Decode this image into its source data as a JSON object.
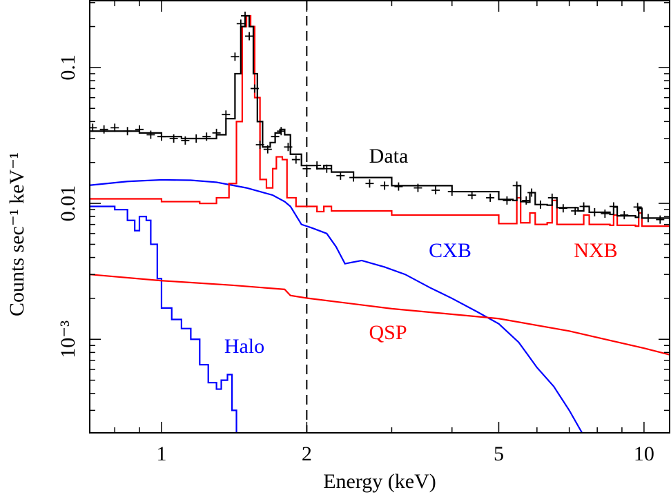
{
  "chart_data": {
    "type": "line",
    "xlabel": "Energy (keV)",
    "ylabel": "Counts sec⁻¹ keV⁻¹",
    "xscale": "log",
    "yscale": "log",
    "xlim": [
      0.71,
      11.3
    ],
    "ylim": [
      0.000205,
      0.31
    ],
    "xticks": [
      1,
      2,
      5,
      10
    ],
    "xminorticks": [
      0.8,
      0.9,
      3,
      4,
      6,
      7,
      8,
      9
    ],
    "yticks": [
      0.1,
      0.01,
      {
        "value": 0.001,
        "label": "10⁻³"
      }
    ],
    "yminorticks": [
      0.0003,
      0.0004,
      0.0005,
      0.0006,
      0.0007,
      0.0008,
      0.0009,
      0.002,
      0.003,
      0.004,
      0.005,
      0.006,
      0.007,
      0.008,
      0.009,
      0.02,
      0.03,
      0.04,
      0.05,
      0.06,
      0.07,
      0.08,
      0.09,
      0.2,
      0.3
    ],
    "vline": 2,
    "series": [
      {
        "name": "Data",
        "color": "#000000",
        "marker": "+",
        "x": [
          0.72,
          0.76,
          0.8,
          0.85,
          0.9,
          0.95,
          1.0,
          1.06,
          1.12,
          1.18,
          1.24,
          1.3,
          1.36,
          1.42,
          1.46,
          1.49,
          1.52,
          1.56,
          1.6,
          1.66,
          1.72,
          1.77,
          1.83,
          1.9,
          2.0,
          2.1,
          2.2,
          2.35,
          2.5,
          2.7,
          2.9,
          3.1,
          3.4,
          3.7,
          4.0,
          4.4,
          4.8,
          5.2,
          5.45,
          5.7,
          5.85,
          6.1,
          6.45,
          6.8,
          7.2,
          7.5,
          7.9,
          8.3,
          8.65,
          9.1,
          9.7,
          10.2,
          10.8
        ],
        "values": [
          0.036,
          0.035,
          0.036,
          0.034,
          0.035,
          0.032,
          0.031,
          0.03,
          0.029,
          0.03,
          0.031,
          0.033,
          0.045,
          0.12,
          0.21,
          0.24,
          0.17,
          0.07,
          0.027,
          0.025,
          0.031,
          0.034,
          0.026,
          0.021,
          0.018,
          0.019,
          0.018,
          0.016,
          0.0155,
          0.014,
          0.0135,
          0.0133,
          0.013,
          0.0125,
          0.0122,
          0.0115,
          0.011,
          0.0105,
          0.0135,
          0.0105,
          0.012,
          0.0098,
          0.011,
          0.0092,
          0.0088,
          0.0095,
          0.0086,
          0.0084,
          0.0095,
          0.0082,
          0.0094,
          0.0078,
          0.0076
        ]
      },
      {
        "color": "#000000",
        "drawstyle": "steps",
        "x": [
          0.71,
          0.8,
          0.9,
          1.0,
          1.1,
          1.2,
          1.3,
          1.36,
          1.42,
          1.46,
          1.49,
          1.52,
          1.55,
          1.58,
          1.62,
          1.68,
          1.72,
          1.76,
          1.8,
          1.85,
          1.95,
          2.1,
          2.17,
          2.25,
          2.5,
          3,
          4,
          5,
          5.35,
          5.45,
          5.55,
          5.7,
          5.8,
          5.95,
          6.3,
          6.45,
          6.6,
          7.3,
          7.5,
          7.7,
          8.5,
          8.65,
          8.8,
          9.6,
          9.75,
          9.9,
          11.3
        ],
        "values": [
          0.034,
          0.034,
          0.033,
          0.031,
          0.03,
          0.03,
          0.032,
          0.042,
          0.09,
          0.2,
          0.24,
          0.2,
          0.09,
          0.04,
          0.026,
          0.028,
          0.033,
          0.035,
          0.032,
          0.023,
          0.019,
          0.018,
          0.019,
          0.017,
          0.0155,
          0.0135,
          0.0122,
          0.0107,
          0.0105,
          0.0135,
          0.0103,
          0.0102,
          0.012,
          0.0098,
          0.0097,
          0.011,
          0.0093,
          0.0088,
          0.0095,
          0.0086,
          0.0083,
          0.0094,
          0.0081,
          0.0079,
          0.0092,
          0.0078,
          0.0074
        ]
      },
      {
        "name": "NXB",
        "color": "#ff0000",
        "drawstyle": "steps",
        "x": [
          0.71,
          1.0,
          1.2,
          1.3,
          1.38,
          1.43,
          1.47,
          1.5,
          1.53,
          1.56,
          1.6,
          1.65,
          1.7,
          1.73,
          1.78,
          1.82,
          1.9,
          2.1,
          2.17,
          2.25,
          3,
          5,
          5.35,
          5.45,
          5.55,
          5.8,
          5.95,
          6.3,
          6.45,
          6.6,
          7.3,
          7.5,
          7.7,
          8.5,
          8.65,
          8.8,
          9.6,
          9.75,
          9.9,
          11.3
        ],
        "values": [
          0.0108,
          0.0103,
          0.01,
          0.011,
          0.014,
          0.04,
          0.2,
          0.24,
          0.2,
          0.06,
          0.015,
          0.013,
          0.018,
          0.022,
          0.021,
          0.011,
          0.0095,
          0.0087,
          0.0095,
          0.0088,
          0.0082,
          0.0071,
          0.0071,
          0.011,
          0.0072,
          0.0085,
          0.007,
          0.0072,
          0.0105,
          0.007,
          0.007,
          0.0082,
          0.007,
          0.0069,
          0.0082,
          0.0069,
          0.0068,
          0.0085,
          0.0068,
          0.0067
        ]
      },
      {
        "name": "QSP",
        "color": "#ff0000",
        "x": [
          0.71,
          1.0,
          1.4,
          1.8,
          1.85,
          2,
          3,
          5,
          7,
          10,
          11.3
        ],
        "values": [
          0.003,
          0.0027,
          0.0025,
          0.00233,
          0.0021,
          0.00201,
          0.00168,
          0.00142,
          0.00115,
          0.00086,
          0.00077
        ]
      },
      {
        "name": "CXB",
        "color": "#0000ff",
        "x": [
          0.71,
          0.85,
          1.0,
          1.15,
          1.3,
          1.5,
          1.7,
          1.8,
          1.85,
          1.95,
          2.05,
          2.2,
          2.3,
          2.4,
          2.6,
          2.9,
          3.2,
          3.6,
          4.0,
          4.5,
          5,
          5.5,
          6,
          6.5,
          7,
          7.5
        ],
        "values": [
          0.0136,
          0.0145,
          0.0149,
          0.0148,
          0.0143,
          0.013,
          0.0115,
          0.0103,
          0.0095,
          0.007,
          0.0066,
          0.006,
          0.0048,
          0.0036,
          0.0038,
          0.0034,
          0.003,
          0.0024,
          0.002,
          0.0016,
          0.0013,
          0.00095,
          0.00062,
          0.00045,
          0.0003,
          0.000195
        ]
      },
      {
        "name": "Halo",
        "color": "#0000ff",
        "drawstyle": "steps",
        "x": [
          0.71,
          0.8,
          0.85,
          0.88,
          0.9,
          0.93,
          0.95,
          0.98,
          1.0,
          1.05,
          1.1,
          1.15,
          1.2,
          1.25,
          1.3,
          1.33,
          1.37,
          1.4,
          1.43
        ],
        "values": [
          0.0095,
          0.009,
          0.0075,
          0.0063,
          0.008,
          0.0075,
          0.005,
          0.0028,
          0.0017,
          0.0014,
          0.0012,
          0.001,
          0.00065,
          0.00048,
          0.00043,
          0.0005,
          0.00055,
          0.0003,
          0.0002
        ]
      }
    ]
  }
}
